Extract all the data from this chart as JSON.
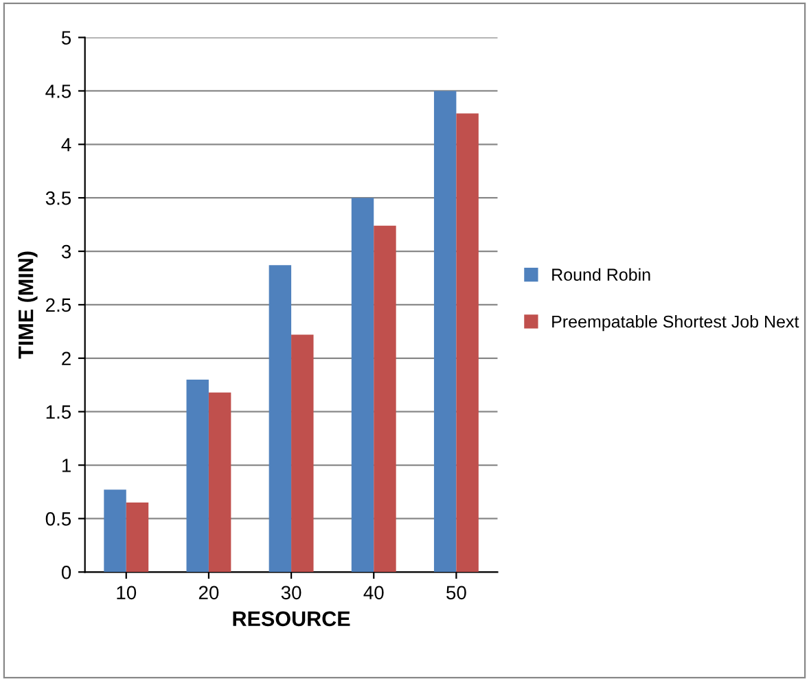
{
  "chart_data": {
    "type": "bar",
    "xlabel": "RESOURCE",
    "ylabel": "TIME (MIN)",
    "categories": [
      "10",
      "20",
      "30",
      "40",
      "50"
    ],
    "series": [
      {
        "name": "Round Robin",
        "color": "#4f81bd",
        "values": [
          0.77,
          1.8,
          2.87,
          3.5,
          4.5
        ]
      },
      {
        "name": "Preempatable Shortest Job Next",
        "color": "#c0504d",
        "values": [
          0.65,
          1.68,
          2.22,
          3.24,
          4.29
        ]
      }
    ],
    "ylim": [
      0,
      5
    ],
    "yticks": [
      0,
      0.5,
      1,
      1.5,
      2,
      2.5,
      3,
      3.5,
      4,
      4.5,
      5
    ],
    "grid": "y",
    "legend": "right"
  }
}
